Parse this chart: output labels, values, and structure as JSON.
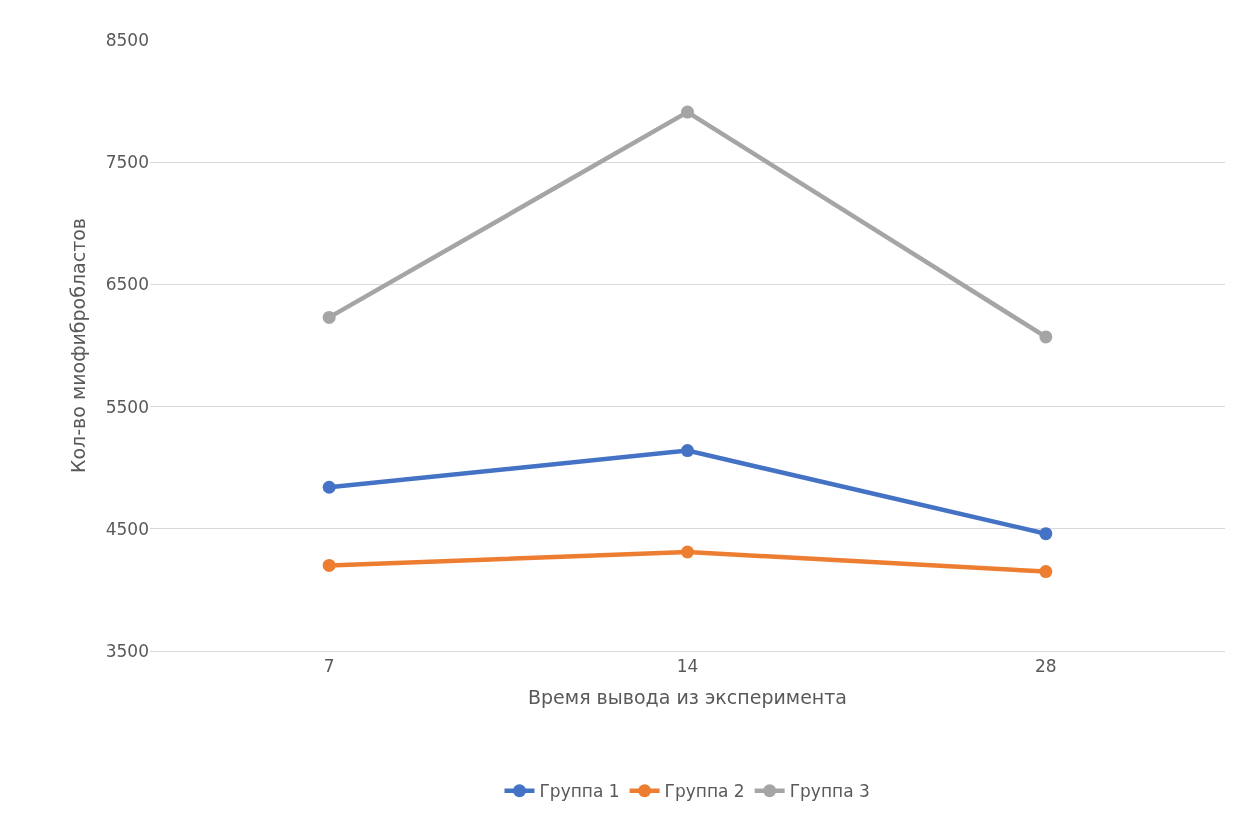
{
  "chart_data": {
    "type": "line",
    "xlabel": "Время вывода из эксперимента",
    "ylabel": "Кол-во миофибробластов",
    "categories": [
      "7",
      "14",
      "28"
    ],
    "series": [
      {
        "name": "Группа 1",
        "color": "#4472c4",
        "values": [
          4840,
          5140,
          4460
        ]
      },
      {
        "name": "Группа 2",
        "color": "#ed7d31",
        "values": [
          4200,
          4310,
          4150
        ]
      },
      {
        "name": "Группа 3",
        "color": "#a5a5a5",
        "values": [
          6230,
          7910,
          6070
        ]
      }
    ],
    "ylim": [
      3500,
      8500
    ],
    "yticks": [
      3500,
      4500,
      5500,
      6500,
      7500,
      8500
    ],
    "grid": "y",
    "legend": "bottom",
    "marker": "circle",
    "line_style": "solid"
  }
}
